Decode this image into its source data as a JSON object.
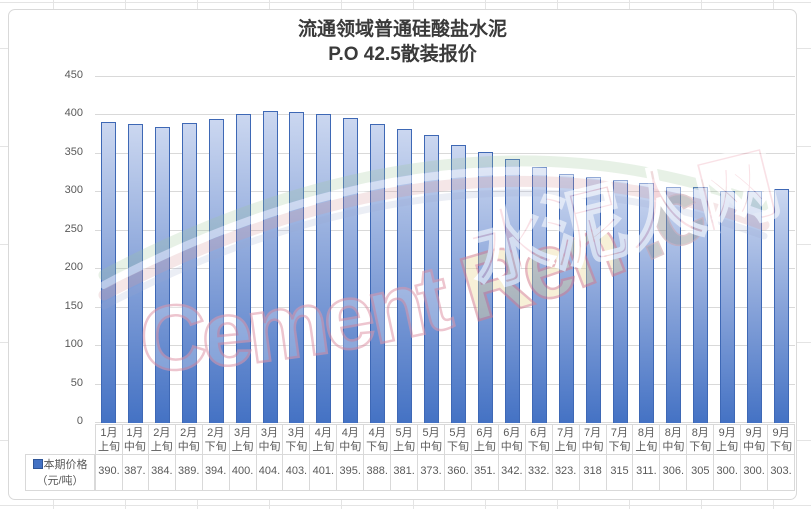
{
  "title": {
    "line1": "流通领域普通硅酸盐水泥",
    "line2": "P.O 42.5散装报价"
  },
  "legend": {
    "line1": "本期价格",
    "line2": "（元/吨）",
    "marker_color": "#4472c4"
  },
  "y_axis": {
    "ticks": [
      "450",
      "400",
      "350",
      "300",
      "250",
      "200",
      "150",
      "100",
      "50",
      "0"
    ]
  },
  "watermark": {
    "text_main": "Cement",
    "text_mid": "Ren",
    "text_suffix": ".com",
    "text_cn": "水泥人网"
  },
  "chart_data": {
    "type": "bar",
    "title": "流通领域普通硅酸盐水泥 P.O 42.5散装报价",
    "xlabel": "",
    "ylabel": "",
    "ylim": [
      0,
      450
    ],
    "y_tick_step": 50,
    "grid": true,
    "legend_position": "data-table-left",
    "series_name": "本期价格（元/吨）",
    "categories": [
      "1月上旬",
      "1月中旬",
      "2月上旬",
      "2月中旬",
      "2月下旬",
      "3月上旬",
      "3月中旬",
      "3月下旬",
      "4月上旬",
      "4月中旬",
      "4月下旬",
      "5月上旬",
      "5月中旬",
      "5月下旬",
      "6月上旬",
      "6月中旬",
      "6月下旬",
      "7月上旬",
      "7月中旬",
      "7月下旬",
      "8月上旬",
      "8月中旬",
      "8月下旬",
      "9月上旬",
      "9月中旬",
      "9月下旬"
    ],
    "values": [
      390,
      387,
      384,
      389,
      394,
      400,
      404,
      403,
      401,
      395,
      388,
      381,
      373,
      360,
      351,
      342,
      332,
      323,
      318,
      315,
      311,
      306,
      305,
      300,
      300,
      303
    ],
    "display_values": [
      "390.",
      "387.",
      "384.",
      "389.",
      "394.",
      "400.",
      "404.",
      "403.",
      "401.",
      "395.",
      "388.",
      "381.",
      "373.",
      "360.",
      "351.",
      "342.",
      "332.",
      "323.",
      "318",
      "315",
      "311.",
      "306.",
      "305",
      "300.",
      "300.",
      "303."
    ],
    "bar_style": {
      "fill_top": "#cbd7f0",
      "fill_bottom": "#4472c4",
      "border": "#3e68b5"
    }
  }
}
